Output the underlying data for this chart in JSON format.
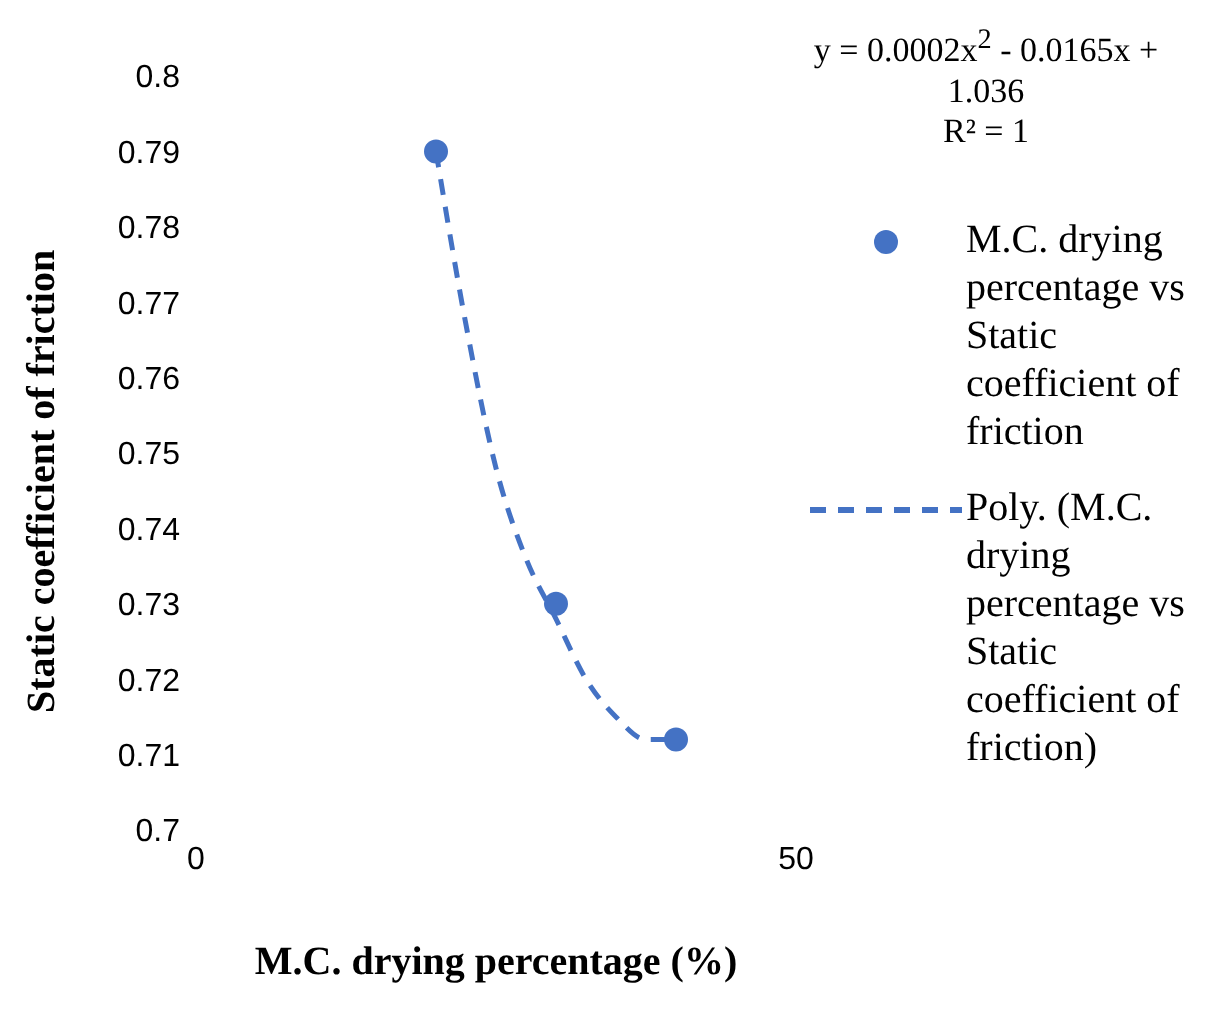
{
  "chart_data": {
    "type": "scatter",
    "xlabel": "M.C. drying percentage (%)",
    "ylabel": "Static coefficient of friction",
    "xlim": [
      0,
      50
    ],
    "xticks": [
      0,
      50
    ],
    "ylim": [
      0.7,
      0.8
    ],
    "yticks": [
      0.7,
      0.71,
      0.72,
      0.73,
      0.74,
      0.75,
      0.76,
      0.77,
      0.78,
      0.79,
      0.8
    ],
    "grid": false,
    "legend": "right",
    "annotations": [
      "y = 0.0002x$^{2}$ - 0.0165x + 1.036",
      "R² = 1"
    ],
    "series": [
      {
        "name": "M.C. drying percentage vs Static coefficient of friction",
        "marker": "circle",
        "color": "#4472c4",
        "x": [
          20,
          30,
          40
        ],
        "values": [
          0.79,
          0.73,
          0.712
        ]
      },
      {
        "name": "Poly. (M.C. drying percentage vs Static coefficient of friction)",
        "type": "line",
        "marker": "none",
        "line_style": "dashed",
        "color": "#4472c4",
        "x": [
          20,
          22.5,
          25,
          27.5,
          30,
          32.5,
          35,
          37.5,
          40
        ],
        "values": [
          0.79,
          0.767,
          0.748,
          0.736,
          0.728,
          0.72,
          0.715,
          0.712,
          0.712
        ]
      }
    ]
  }
}
